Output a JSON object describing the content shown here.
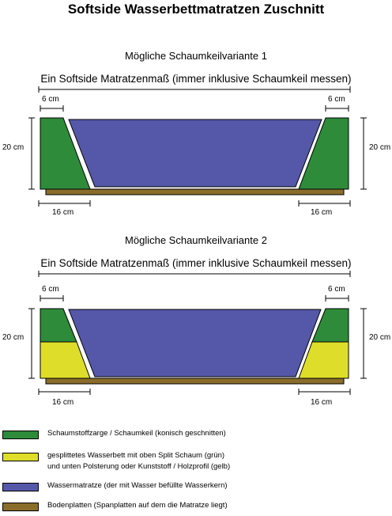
{
  "title": "Softside Wasserbettmatratzen Zuschnitt",
  "variants": [
    {
      "subtitle": "Mögliche Schaumkeilvariante 1",
      "measure_label": "Ein Softside Matratzenmaß (immer inklusive Schaumkeil messen)",
      "top_width_label": "6 cm",
      "top_width_label_right": "6 cm",
      "height_label": "20 cm",
      "height_label_right": "20 cm",
      "bottom_width_label": "16 cm",
      "bottom_width_label_right": "16 cm"
    },
    {
      "subtitle": "Mögliche Schaumkeilvariante 2",
      "measure_label": "Ein Softside Matratzenmaß (immer inklusive Schaumkeil messen)",
      "top_width_label": "6 cm",
      "top_width_label_right": "6 cm",
      "height_label": "20 cm",
      "height_label_right": "20 cm",
      "bottom_width_label": "16 cm",
      "bottom_width_label_right": "16 cm"
    }
  ],
  "legend": [
    {
      "color": "#2e8b3a",
      "text": "Schaumstoffzarge / Schaumkeil (konisch geschnitten)"
    },
    {
      "color": "#dede2a",
      "text": "gesplittetes Wasserbett mit oben Split Schaum (grün)\nund unten Polsterung oder Kunststoff / Holzprofil (gelb)"
    },
    {
      "color": "#5558a8",
      "text": "Wassermatratze (der mit Wasser befüllte Wasserkern)"
    },
    {
      "color": "#8a6d2a",
      "text": "Bodenplatten (Spanplatten auf dem die Matratze liegt)"
    }
  ],
  "colors": {
    "foam": "#2e8b3a",
    "split": "#dede2a",
    "water": "#5558a8",
    "base": "#8a6d2a"
  }
}
